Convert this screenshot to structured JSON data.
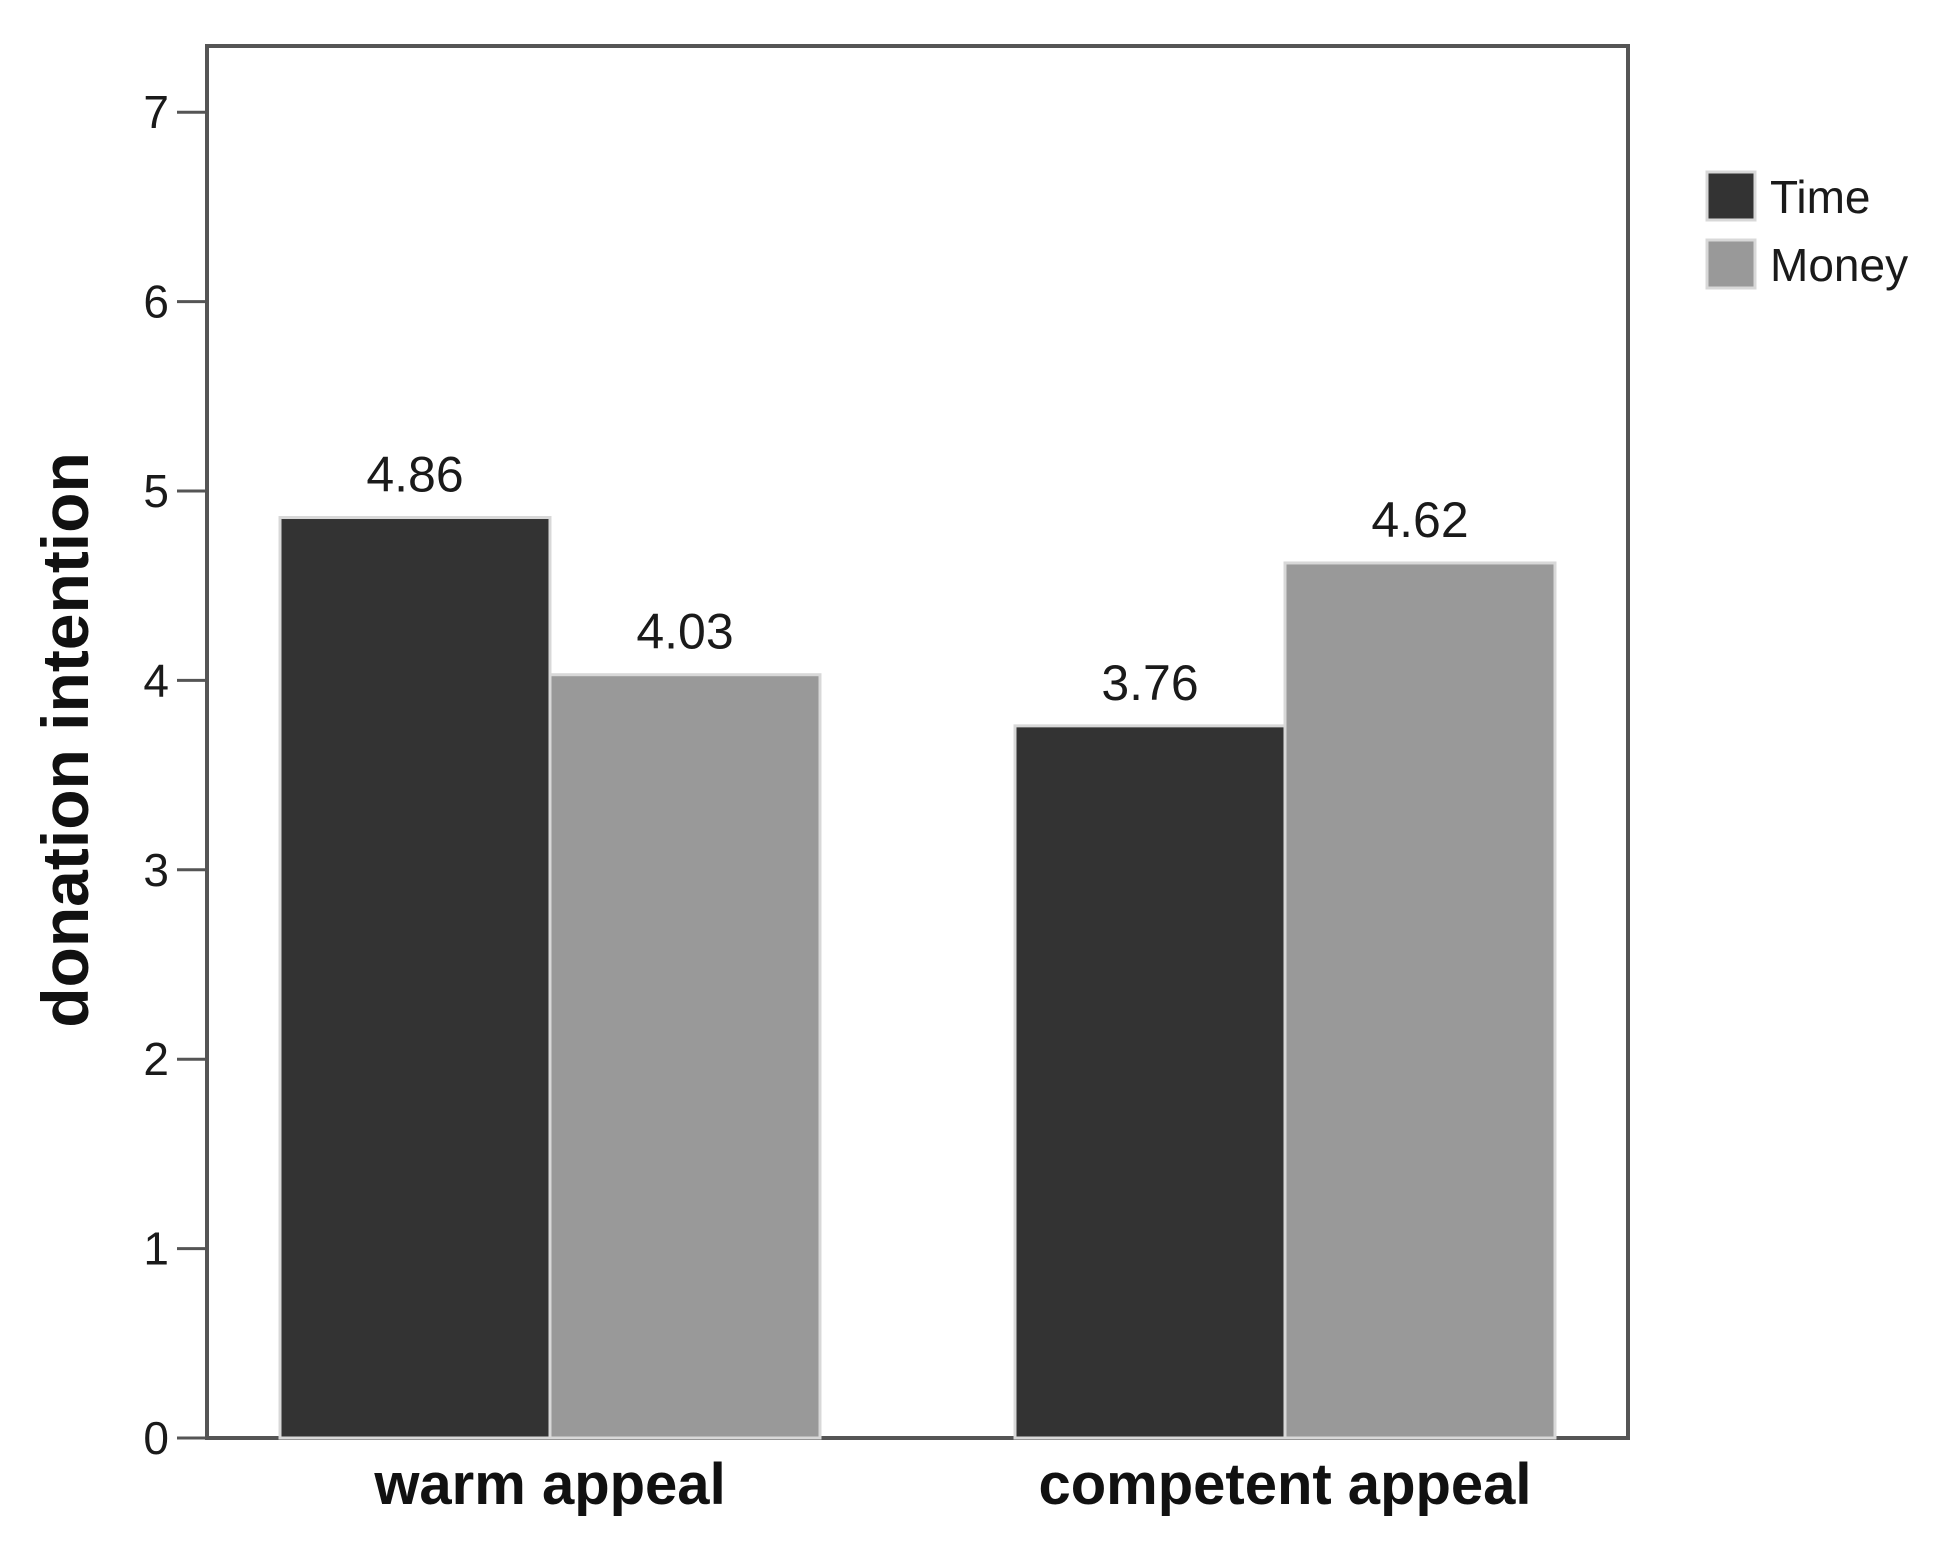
{
  "chart_data": {
    "type": "bar",
    "categories": [
      "warm appeal",
      "competent appeal"
    ],
    "series": [
      {
        "name": "Time",
        "values": [
          4.86,
          3.76
        ],
        "color": "#333333"
      },
      {
        "name": "Money",
        "values": [
          4.03,
          4.62
        ],
        "color": "#999999"
      }
    ],
    "data_labels": [
      [
        "4.86",
        "3.76"
      ],
      [
        "4.03",
        "4.62"
      ]
    ],
    "xlabel": "",
    "ylabel": "donation intention",
    "ylim": [
      0,
      7
    ],
    "yticks": [
      "0",
      "1",
      "2",
      "3",
      "4",
      "5",
      "6",
      "7"
    ],
    "grid": false,
    "legend_position": "right"
  }
}
